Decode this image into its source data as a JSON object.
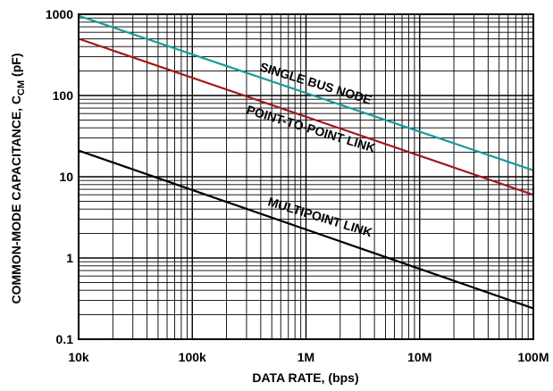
{
  "chart_data": {
    "type": "line",
    "x_scale": "log",
    "y_scale": "log",
    "xlim": [
      10000,
      100000000
    ],
    "ylim": [
      0.1,
      1000
    ],
    "xlabel": "DATA RATE, (bps)",
    "ylabel": "COMMON-MODE CAPACITANCE, C",
    "ylabel_sub": "CM",
    "ylabel_unit": " (pF)",
    "x_tick_values": [
      10000,
      100000,
      1000000,
      10000000,
      100000000
    ],
    "x_tick_labels": [
      "10k",
      "100k",
      "1M",
      "10M",
      "100M"
    ],
    "y_tick_values": [
      0.1,
      1,
      10,
      100,
      1000
    ],
    "y_tick_labels": [
      "0.1",
      "1",
      "10",
      "100",
      "1000"
    ],
    "grid": true,
    "series": [
      {
        "name": "SINGLE BUS NODE",
        "color": "#1a9a9a",
        "x": [
          10000,
          100000000
        ],
        "y": [
          960,
          12
        ]
      },
      {
        "name": "POINT-TO-POINT LINK",
        "color": "#a01818",
        "x": [
          10000,
          100000000
        ],
        "y": [
          500,
          6
        ]
      },
      {
        "name": "MULTIPOINT LINK",
        "color": "#000000",
        "x": [
          10000,
          100000000
        ],
        "y": [
          21,
          0.24
        ]
      }
    ]
  }
}
